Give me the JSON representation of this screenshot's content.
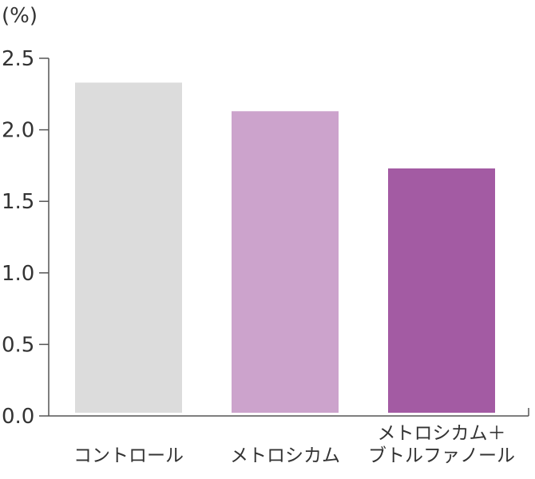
{
  "chart_data": {
    "type": "bar",
    "unit_label": "(%)",
    "categories": [
      [
        "コントロール"
      ],
      [
        "メトロシカム"
      ],
      [
        "メトロシカム＋",
        "ブトルファノール"
      ]
    ],
    "values": [
      2.33,
      2.13,
      1.73
    ],
    "colors": [
      "#dcdcdc",
      "#cca3cc",
      "#a35ba3"
    ],
    "ylim": [
      0,
      2.5
    ],
    "yticks": [
      "0.0",
      "0.5",
      "1.0",
      "1.5",
      "2.0",
      "2.5"
    ],
    "grid": false,
    "legend": "none",
    "axis_color": "#555555"
  }
}
